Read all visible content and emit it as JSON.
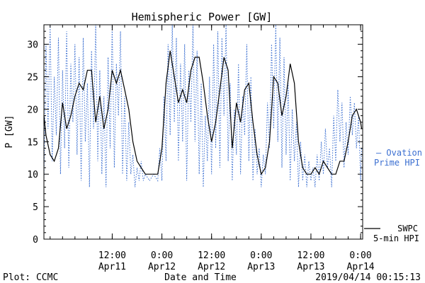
{
  "chart_data": {
    "type": "line",
    "title": "Hemispheric Power [GW]",
    "xlabel": "Date and Time",
    "ylabel": "P [GW]",
    "ylim": [
      0,
      33
    ],
    "yticks": [
      0,
      5,
      10,
      15,
      20,
      25,
      30
    ],
    "xlim": [
      "2019-04-10 19:30",
      "2019-04-14 00:30"
    ],
    "xticks": [
      {
        "time": "2019-04-11 12:00",
        "line1": "12:00",
        "line2": "Apr11"
      },
      {
        "time": "2019-04-12 00:00",
        "line1": "0:00",
        "line2": "Apr12"
      },
      {
        "time": "2019-04-12 12:00",
        "line1": "12:00",
        "line2": "Apr12"
      },
      {
        "time": "2019-04-13 00:00",
        "line1": "0:00",
        "line2": "Apr13"
      },
      {
        "time": "2019-04-13 12:00",
        "line1": "12:00",
        "line2": "Apr13"
      },
      {
        "time": "2019-04-14 00:00",
        "line1": "0:00",
        "line2": "Apr14"
      }
    ],
    "grid": false,
    "legend_placement": "right",
    "series": [
      {
        "name": "SWPC 5-min HPI",
        "legend_lines": [
          "SWPC",
          "5-min HPI"
        ],
        "color": "#000000",
        "style": "solid",
        "points": [
          [
            "2019-04-10 19:30",
            19
          ],
          [
            "2019-04-10 20:00",
            16
          ],
          [
            "2019-04-10 21:00",
            13
          ],
          [
            "2019-04-10 22:00",
            12
          ],
          [
            "2019-04-10 23:00",
            14
          ],
          [
            "2019-04-11 00:00",
            21
          ],
          [
            "2019-04-11 01:00",
            17
          ],
          [
            "2019-04-11 02:00",
            19
          ],
          [
            "2019-04-11 03:00",
            22
          ],
          [
            "2019-04-11 04:00",
            24
          ],
          [
            "2019-04-11 05:00",
            23
          ],
          [
            "2019-04-11 06:00",
            26
          ],
          [
            "2019-04-11 07:00",
            26
          ],
          [
            "2019-04-11 08:00",
            18
          ],
          [
            "2019-04-11 09:00",
            22
          ],
          [
            "2019-04-11 10:00",
            17
          ],
          [
            "2019-04-11 11:00",
            20
          ],
          [
            "2019-04-11 12:00",
            26
          ],
          [
            "2019-04-11 13:00",
            24
          ],
          [
            "2019-04-11 14:00",
            26
          ],
          [
            "2019-04-11 15:00",
            23
          ],
          [
            "2019-04-11 16:00",
            20
          ],
          [
            "2019-04-11 17:00",
            15
          ],
          [
            "2019-04-11 18:00",
            12
          ],
          [
            "2019-04-11 19:00",
            11
          ],
          [
            "2019-04-11 20:00",
            10
          ],
          [
            "2019-04-11 21:00",
            10
          ],
          [
            "2019-04-11 22:00",
            10
          ],
          [
            "2019-04-11 23:00",
            10
          ],
          [
            "2019-04-12 00:00",
            14
          ],
          [
            "2019-04-12 01:00",
            24
          ],
          [
            "2019-04-12 02:00",
            29
          ],
          [
            "2019-04-12 03:00",
            25
          ],
          [
            "2019-04-12 04:00",
            21
          ],
          [
            "2019-04-12 05:00",
            23
          ],
          [
            "2019-04-12 06:00",
            21
          ],
          [
            "2019-04-12 07:00",
            26
          ],
          [
            "2019-04-12 08:00",
            28
          ],
          [
            "2019-04-12 09:00",
            28
          ],
          [
            "2019-04-12 10:00",
            24
          ],
          [
            "2019-04-12 11:00",
            19
          ],
          [
            "2019-04-12 12:00",
            15
          ],
          [
            "2019-04-12 13:00",
            18
          ],
          [
            "2019-04-12 14:00",
            23
          ],
          [
            "2019-04-12 15:00",
            28
          ],
          [
            "2019-04-12 16:00",
            26
          ],
          [
            "2019-04-12 17:00",
            14
          ],
          [
            "2019-04-12 18:00",
            21
          ],
          [
            "2019-04-12 19:00",
            18
          ],
          [
            "2019-04-12 20:00",
            23
          ],
          [
            "2019-04-12 21:00",
            24
          ],
          [
            "2019-04-12 22:00",
            18
          ],
          [
            "2019-04-12 23:00",
            13
          ],
          [
            "2019-04-13 00:00",
            10
          ],
          [
            "2019-04-13 01:00",
            11
          ],
          [
            "2019-04-13 02:00",
            15
          ],
          [
            "2019-04-13 03:00",
            25
          ],
          [
            "2019-04-13 04:00",
            24
          ],
          [
            "2019-04-13 05:00",
            19
          ],
          [
            "2019-04-13 06:00",
            22
          ],
          [
            "2019-04-13 07:00",
            27
          ],
          [
            "2019-04-13 08:00",
            24
          ],
          [
            "2019-04-13 09:00",
            15
          ],
          [
            "2019-04-13 10:00",
            11
          ],
          [
            "2019-04-13 11:00",
            10
          ],
          [
            "2019-04-13 12:00",
            10
          ],
          [
            "2019-04-13 13:00",
            11
          ],
          [
            "2019-04-13 14:00",
            10
          ],
          [
            "2019-04-13 15:00",
            12
          ],
          [
            "2019-04-13 16:00",
            11
          ],
          [
            "2019-04-13 17:00",
            10
          ],
          [
            "2019-04-13 18:00",
            10
          ],
          [
            "2019-04-13 19:00",
            12
          ],
          [
            "2019-04-13 20:00",
            12
          ],
          [
            "2019-04-13 21:00",
            15
          ],
          [
            "2019-04-13 22:00",
            19
          ],
          [
            "2019-04-13 23:00",
            20
          ],
          [
            "2019-04-14 00:00",
            18
          ],
          [
            "2019-04-14 00:15",
            17
          ]
        ]
      },
      {
        "name": "Ovation Prime HPI",
        "legend_lines": [
          "— Ovation",
          "Prime HPI"
        ],
        "color": "#3b6fd1",
        "style": "dotted",
        "points": [
          [
            "2019-04-10 19:30",
            9
          ],
          [
            "2019-04-10 20:00",
            30
          ],
          [
            "2019-04-10 20:30",
            17
          ],
          [
            "2019-04-10 21:00",
            33
          ],
          [
            "2019-04-10 21:30",
            12
          ],
          [
            "2019-04-10 22:00",
            25
          ],
          [
            "2019-04-10 22:30",
            16
          ],
          [
            "2019-04-10 23:00",
            31
          ],
          [
            "2019-04-10 23:30",
            10
          ],
          [
            "2019-04-11 00:00",
            26
          ],
          [
            "2019-04-11 00:30",
            14
          ],
          [
            "2019-04-11 01:00",
            32
          ],
          [
            "2019-04-11 01:30",
            11
          ],
          [
            "2019-04-11 02:00",
            27
          ],
          [
            "2019-04-11 02:30",
            18
          ],
          [
            "2019-04-11 03:00",
            30
          ],
          [
            "2019-04-11 03:30",
            13
          ],
          [
            "2019-04-11 04:00",
            28
          ],
          [
            "2019-04-11 04:30",
            9
          ],
          [
            "2019-04-11 05:00",
            31
          ],
          [
            "2019-04-11 05:30",
            15
          ],
          [
            "2019-04-11 06:00",
            24
          ],
          [
            "2019-04-11 06:30",
            8
          ],
          [
            "2019-04-11 07:00",
            29
          ],
          [
            "2019-04-11 07:30",
            17
          ],
          [
            "2019-04-11 08:00",
            33
          ],
          [
            "2019-04-11 08:30",
            12
          ],
          [
            "2019-04-11 09:00",
            26
          ],
          [
            "2019-04-11 09:30",
            10
          ],
          [
            "2019-04-11 10:00",
            22
          ],
          [
            "2019-04-11 10:30",
            8
          ],
          [
            "2019-04-11 11:00",
            28
          ],
          [
            "2019-04-11 11:30",
            14
          ],
          [
            "2019-04-11 12:00",
            33
          ],
          [
            "2019-04-11 12:30",
            11
          ],
          [
            "2019-04-11 13:00",
            27
          ],
          [
            "2019-04-11 13:30",
            19
          ],
          [
            "2019-04-11 14:00",
            32
          ],
          [
            "2019-04-11 14:30",
            10
          ],
          [
            "2019-04-11 15:00",
            22
          ],
          [
            "2019-04-11 15:30",
            9
          ],
          [
            "2019-04-11 16:00",
            18
          ],
          [
            "2019-04-11 16:30",
            10
          ],
          [
            "2019-04-11 17:00",
            13
          ],
          [
            "2019-04-11 17:30",
            8
          ],
          [
            "2019-04-11 18:00",
            11
          ],
          [
            "2019-04-11 18:30",
            9
          ],
          [
            "2019-04-11 19:00",
            12
          ],
          [
            "2019-04-11 19:30",
            9
          ],
          [
            "2019-04-11 20:00",
            10
          ],
          [
            "2019-04-11 21:00",
            9
          ],
          [
            "2019-04-11 22:00",
            10
          ],
          [
            "2019-04-11 23:00",
            9
          ],
          [
            "2019-04-11 23:30",
            14
          ],
          [
            "2019-04-12 00:00",
            9
          ],
          [
            "2019-04-12 00:30",
            22
          ],
          [
            "2019-04-12 01:00",
            12
          ],
          [
            "2019-04-12 01:30",
            30
          ],
          [
            "2019-04-12 02:00",
            16
          ],
          [
            "2019-04-12 02:30",
            33
          ],
          [
            "2019-04-12 03:00",
            18
          ],
          [
            "2019-04-12 03:30",
            31
          ],
          [
            "2019-04-12 04:00",
            12
          ],
          [
            "2019-04-12 04:30",
            27
          ],
          [
            "2019-04-12 05:00",
            15
          ],
          [
            "2019-04-12 05:30",
            30
          ],
          [
            "2019-04-12 06:00",
            9
          ],
          [
            "2019-04-12 06:30",
            26
          ],
          [
            "2019-04-12 07:00",
            18
          ],
          [
            "2019-04-12 07:30",
            33
          ],
          [
            "2019-04-12 08:00",
            15
          ],
          [
            "2019-04-12 08:30",
            29
          ],
          [
            "2019-04-12 09:00",
            10
          ],
          [
            "2019-04-12 09:30",
            24
          ],
          [
            "2019-04-12 10:00",
            8
          ],
          [
            "2019-04-12 10:30",
            19
          ],
          [
            "2019-04-12 11:00",
            12
          ],
          [
            "2019-04-12 11:30",
            25
          ],
          [
            "2019-04-12 12:00",
            10
          ],
          [
            "2019-04-12 12:30",
            30
          ],
          [
            "2019-04-12 13:00",
            14
          ],
          [
            "2019-04-12 13:30",
            32
          ],
          [
            "2019-04-12 14:00",
            11
          ],
          [
            "2019-04-12 14:30",
            31
          ],
          [
            "2019-04-12 15:00",
            19
          ],
          [
            "2019-04-12 15:30",
            33
          ],
          [
            "2019-04-12 16:00",
            12
          ],
          [
            "2019-04-12 16:30",
            24
          ],
          [
            "2019-04-12 17:00",
            9
          ],
          [
            "2019-04-12 17:30",
            20
          ],
          [
            "2019-04-12 18:00",
            13
          ],
          [
            "2019-04-12 18:30",
            27
          ],
          [
            "2019-04-12 19:00",
            10
          ],
          [
            "2019-04-12 19:30",
            22
          ],
          [
            "2019-04-12 20:00",
            16
          ],
          [
            "2019-04-12 20:30",
            30
          ],
          [
            "2019-04-12 21:00",
            12
          ],
          [
            "2019-04-12 21:30",
            25
          ],
          [
            "2019-04-12 22:00",
            9
          ],
          [
            "2019-04-12 22:30",
            17
          ],
          [
            "2019-04-12 23:00",
            10
          ],
          [
            "2019-04-12 23:30",
            14
          ],
          [
            "2019-04-13 00:00",
            8
          ],
          [
            "2019-04-13 00:30",
            13
          ],
          [
            "2019-04-13 01:00",
            10
          ],
          [
            "2019-04-13 01:30",
            21
          ],
          [
            "2019-04-13 02:00",
            14
          ],
          [
            "2019-04-13 02:30",
            30
          ],
          [
            "2019-04-13 03:00",
            17
          ],
          [
            "2019-04-13 03:30",
            33
          ],
          [
            "2019-04-13 04:00",
            15
          ],
          [
            "2019-04-13 04:30",
            31
          ],
          [
            "2019-04-13 05:00",
            11
          ],
          [
            "2019-04-13 05:30",
            28
          ],
          [
            "2019-04-13 06:00",
            13
          ],
          [
            "2019-04-13 06:30",
            24
          ],
          [
            "2019-04-13 07:00",
            9
          ],
          [
            "2019-04-13 07:30",
            20
          ],
          [
            "2019-04-13 08:00",
            12
          ],
          [
            "2019-04-13 08:30",
            18
          ],
          [
            "2019-04-13 09:00",
            8
          ],
          [
            "2019-04-13 09:30",
            15
          ],
          [
            "2019-04-13 10:00",
            9
          ],
          [
            "2019-04-13 10:30",
            13
          ],
          [
            "2019-04-13 11:00",
            8
          ],
          [
            "2019-04-13 11:30",
            12
          ],
          [
            "2019-04-13 12:00",
            9
          ],
          [
            "2019-04-13 12:30",
            11
          ],
          [
            "2019-04-13 13:00",
            8
          ],
          [
            "2019-04-13 13:30",
            13
          ],
          [
            "2019-04-13 14:00",
            9
          ],
          [
            "2019-04-13 14:30",
            15
          ],
          [
            "2019-04-13 15:00",
            10
          ],
          [
            "2019-04-13 15:30",
            17
          ],
          [
            "2019-04-13 16:00",
            11
          ],
          [
            "2019-04-13 16:30",
            14
          ],
          [
            "2019-04-13 17:00",
            8
          ],
          [
            "2019-04-13 17:30",
            19
          ],
          [
            "2019-04-13 18:00",
            12
          ],
          [
            "2019-04-13 18:30",
            23
          ],
          [
            "2019-04-13 19:00",
            15
          ],
          [
            "2019-04-13 19:30",
            21
          ],
          [
            "2019-04-13 20:00",
            11
          ],
          [
            "2019-04-13 20:30",
            18
          ],
          [
            "2019-04-13 21:00",
            13
          ],
          [
            "2019-04-13 21:30",
            22
          ],
          [
            "2019-04-13 22:00",
            16
          ],
          [
            "2019-04-13 22:30",
            21
          ],
          [
            "2019-04-13 23:00",
            14
          ],
          [
            "2019-04-13 23:30",
            19
          ],
          [
            "2019-04-14 00:00",
            9
          ],
          [
            "2019-04-14 00:15",
            14
          ]
        ]
      }
    ]
  },
  "footer": {
    "left": "Plot: CCMC",
    "right": "2019/04/14 00:15:13"
  }
}
